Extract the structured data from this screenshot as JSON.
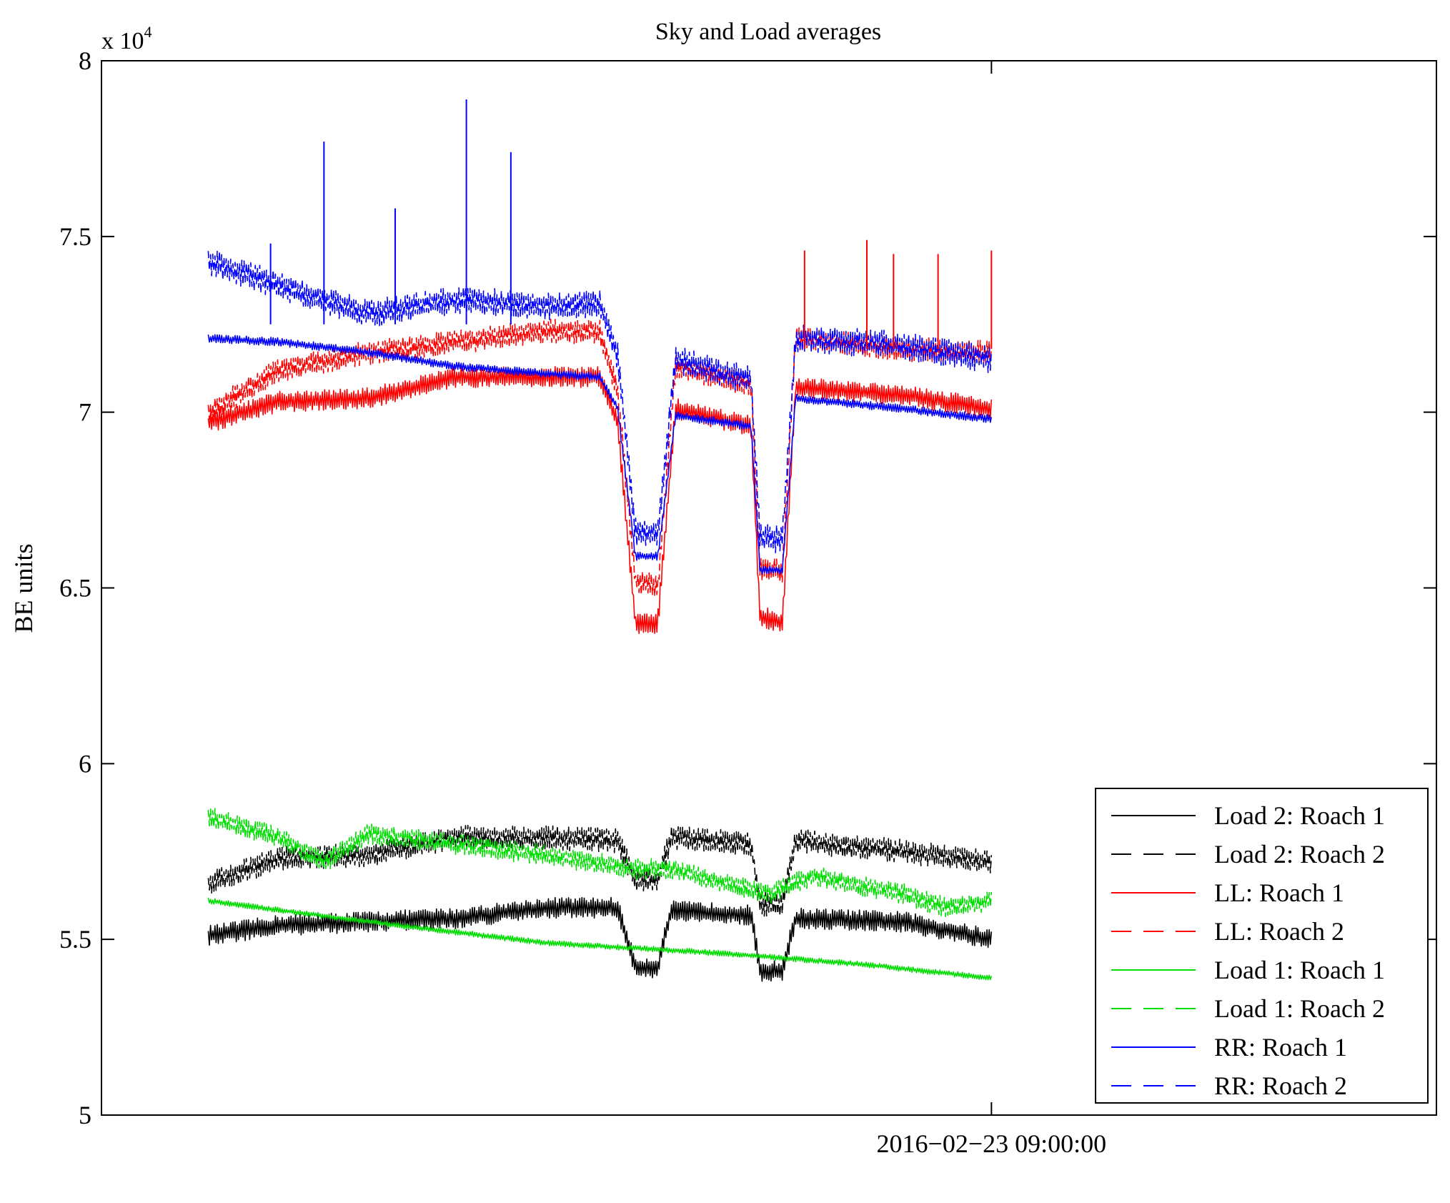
{
  "chart_data": {
    "type": "line",
    "title": "Sky and Load averages",
    "ylabel": "BE units",
    "xlabel": "",
    "y_scale_prefix": "x 10",
    "y_scale_exponent": "4",
    "ylim": [
      5,
      8
    ],
    "yticks": [
      {
        "value": 5,
        "label": "5"
      },
      {
        "value": 5.5,
        "label": "5.5"
      },
      {
        "value": 6,
        "label": "6"
      },
      {
        "value": 6.5,
        "label": "6.5"
      },
      {
        "value": 7,
        "label": "7"
      },
      {
        "value": 7.5,
        "label": "7.5"
      },
      {
        "value": 8,
        "label": "8"
      }
    ],
    "xlim_hours": [
      0,
      1.5
    ],
    "xticks": [
      {
        "value": 1.0,
        "label": "2016−02−23 09:00:00"
      }
    ],
    "legend_position": "bottom-right",
    "series": [
      {
        "name": "Load 2: Roach 1",
        "color": "#000000",
        "dash": "solid",
        "noise": 0.03,
        "points": [
          [
            0.12,
            5.51
          ],
          [
            0.2,
            5.54
          ],
          [
            0.3,
            5.55
          ],
          [
            0.4,
            5.56
          ],
          [
            0.5,
            5.59
          ],
          [
            0.58,
            5.59
          ],
          [
            0.6,
            5.42
          ],
          [
            0.625,
            5.42
          ],
          [
            0.64,
            5.58
          ],
          [
            0.73,
            5.57
          ],
          [
            0.74,
            5.41
          ],
          [
            0.765,
            5.41
          ],
          [
            0.78,
            5.56
          ],
          [
            0.9,
            5.55
          ],
          [
            1.0,
            5.5
          ]
        ]
      },
      {
        "name": "Load 2: Roach 2",
        "color": "#000000",
        "dash": "dashed",
        "noise": 0.035,
        "points": [
          [
            0.12,
            5.66
          ],
          [
            0.2,
            5.73
          ],
          [
            0.3,
            5.74
          ],
          [
            0.4,
            5.79
          ],
          [
            0.5,
            5.79
          ],
          [
            0.58,
            5.78
          ],
          [
            0.6,
            5.67
          ],
          [
            0.625,
            5.67
          ],
          [
            0.64,
            5.79
          ],
          [
            0.73,
            5.77
          ],
          [
            0.74,
            5.6
          ],
          [
            0.765,
            5.6
          ],
          [
            0.78,
            5.78
          ],
          [
            0.9,
            5.75
          ],
          [
            1.0,
            5.72
          ]
        ]
      },
      {
        "name": "LL: Roach 1",
        "color": "#ff0000",
        "dash": "solid",
        "noise": 0.03,
        "points": [
          [
            0.12,
            6.97
          ],
          [
            0.2,
            7.03
          ],
          [
            0.3,
            7.04
          ],
          [
            0.4,
            7.1
          ],
          [
            0.5,
            7.1
          ],
          [
            0.56,
            7.1
          ],
          [
            0.58,
            6.97
          ],
          [
            0.6,
            6.4
          ],
          [
            0.625,
            6.4
          ],
          [
            0.645,
            7.01
          ],
          [
            0.73,
            6.96
          ],
          [
            0.74,
            6.42
          ],
          [
            0.765,
            6.4
          ],
          [
            0.78,
            7.07
          ],
          [
            0.9,
            7.05
          ],
          [
            1.0,
            7.01
          ]
        ]
      },
      {
        "name": "LL: Roach 2",
        "color": "#ff0000",
        "dash": "dashed",
        "noise": 0.035,
        "points": [
          [
            0.12,
            7.0
          ],
          [
            0.2,
            7.12
          ],
          [
            0.3,
            7.17
          ],
          [
            0.4,
            7.2
          ],
          [
            0.5,
            7.23
          ],
          [
            0.56,
            7.23
          ],
          [
            0.58,
            7.06
          ],
          [
            0.6,
            6.52
          ],
          [
            0.625,
            6.5
          ],
          [
            0.645,
            7.13
          ],
          [
            0.73,
            7.08
          ],
          [
            0.74,
            6.55
          ],
          [
            0.765,
            6.55
          ],
          [
            0.78,
            7.21
          ],
          [
            0.9,
            7.18
          ],
          [
            1.0,
            7.17
          ]
        ]
      },
      {
        "name": "Load 1: Roach 1",
        "color": "#00dd00",
        "dash": "solid",
        "noise": 0.008,
        "points": [
          [
            0.12,
            5.61
          ],
          [
            0.3,
            5.55
          ],
          [
            0.5,
            5.49
          ],
          [
            0.7,
            5.46
          ],
          [
            0.85,
            5.43
          ],
          [
            1.0,
            5.39
          ]
        ]
      },
      {
        "name": "Load 1: Roach 2",
        "color": "#00dd00",
        "dash": "dashed",
        "noise": 0.03,
        "points": [
          [
            0.12,
            5.85
          ],
          [
            0.2,
            5.79
          ],
          [
            0.25,
            5.72
          ],
          [
            0.3,
            5.8
          ],
          [
            0.4,
            5.77
          ],
          [
            0.5,
            5.74
          ],
          [
            0.6,
            5.7
          ],
          [
            0.64,
            5.7
          ],
          [
            0.7,
            5.66
          ],
          [
            0.75,
            5.63
          ],
          [
            0.8,
            5.68
          ],
          [
            0.9,
            5.63
          ],
          [
            0.95,
            5.59
          ],
          [
            1.0,
            5.61
          ]
        ]
      },
      {
        "name": "RR: Roach 1",
        "color": "#0000ff",
        "dash": "solid",
        "noise": 0.012,
        "points": [
          [
            0.12,
            7.21
          ],
          [
            0.2,
            7.2
          ],
          [
            0.3,
            7.17
          ],
          [
            0.4,
            7.13
          ],
          [
            0.5,
            7.11
          ],
          [
            0.56,
            7.1
          ],
          [
            0.58,
            7.01
          ],
          [
            0.6,
            6.59
          ],
          [
            0.625,
            6.59
          ],
          [
            0.645,
            6.99
          ],
          [
            0.73,
            6.96
          ],
          [
            0.74,
            6.55
          ],
          [
            0.765,
            6.55
          ],
          [
            0.78,
            7.04
          ],
          [
            0.9,
            7.01
          ],
          [
            1.0,
            6.98
          ]
        ]
      },
      {
        "name": "RR: Roach 2",
        "color": "#0000ff",
        "dash": "dashed",
        "noise": 0.04,
        "points": [
          [
            0.12,
            7.43
          ],
          [
            0.2,
            7.36
          ],
          [
            0.3,
            7.28
          ],
          [
            0.4,
            7.32
          ],
          [
            0.5,
            7.3
          ],
          [
            0.56,
            7.31
          ],
          [
            0.58,
            7.16
          ],
          [
            0.6,
            6.66
          ],
          [
            0.625,
            6.65
          ],
          [
            0.645,
            7.15
          ],
          [
            0.73,
            7.09
          ],
          [
            0.74,
            6.64
          ],
          [
            0.765,
            6.64
          ],
          [
            0.78,
            7.21
          ],
          [
            0.9,
            7.19
          ],
          [
            1.0,
            7.15
          ]
        ]
      }
    ],
    "spikes": [
      {
        "x": 0.25,
        "y": 7.77,
        "color": "#0000ff"
      },
      {
        "x": 0.33,
        "y": 7.58,
        "color": "#0000ff"
      },
      {
        "x": 0.41,
        "y": 7.89,
        "color": "#0000ff"
      },
      {
        "x": 0.46,
        "y": 7.74,
        "color": "#0000ff"
      },
      {
        "x": 0.19,
        "y": 7.48,
        "color": "#0000ff"
      },
      {
        "x": 0.79,
        "y": 7.46,
        "color": "#ff0000"
      },
      {
        "x": 0.86,
        "y": 7.49,
        "color": "#ff0000"
      },
      {
        "x": 0.89,
        "y": 7.45,
        "color": "#ff0000"
      },
      {
        "x": 0.94,
        "y": 7.45,
        "color": "#ff0000"
      },
      {
        "x": 1.0,
        "y": 7.46,
        "color": "#ff0000"
      }
    ]
  }
}
